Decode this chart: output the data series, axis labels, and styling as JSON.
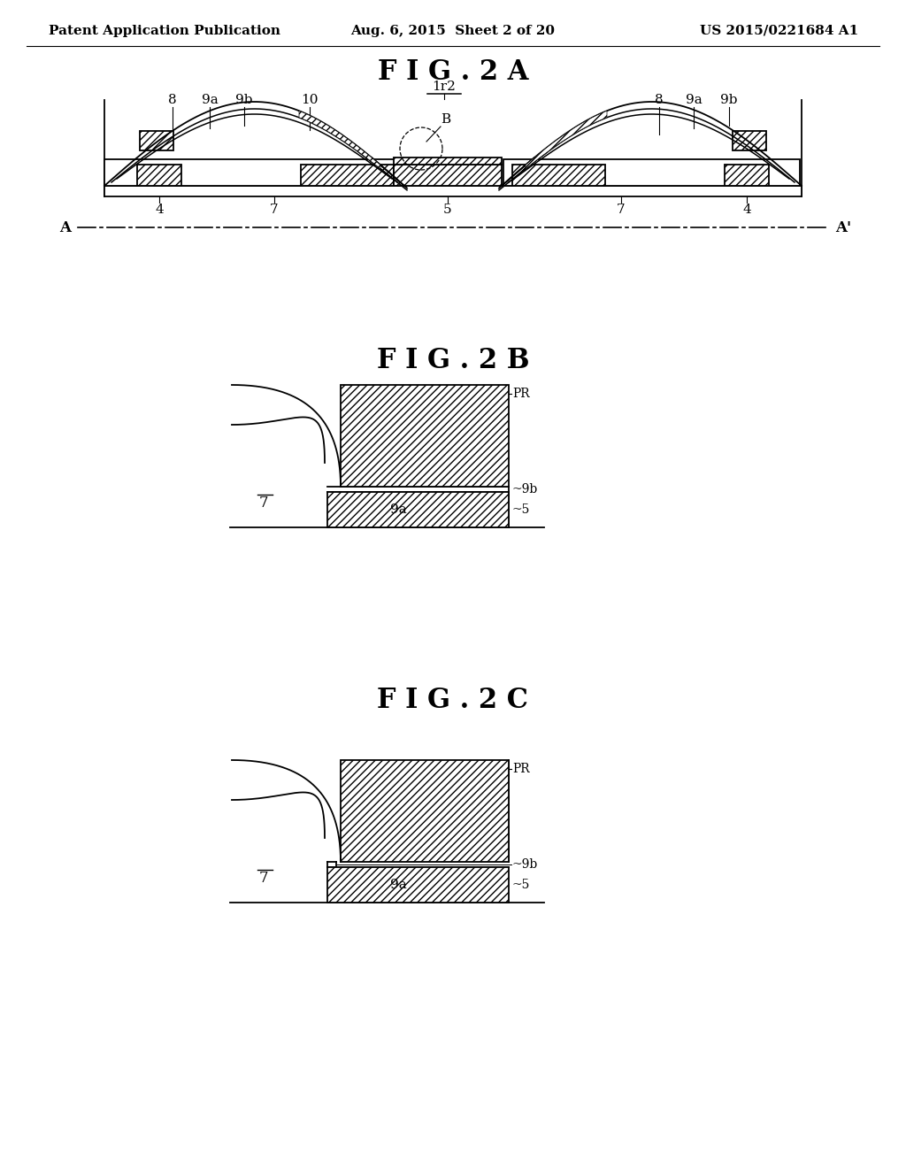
{
  "bg_color": "#ffffff",
  "header_left": "Patent Application Publication",
  "header_center": "Aug. 6, 2015  Sheet 2 of 20",
  "header_right": "US 2015/0221684 A1",
  "fig2a_title": "F I G . 2 A",
  "fig2b_title": "F I G . 2 B",
  "fig2c_title": "F I G . 2 C",
  "header_fontsize": 11,
  "title_fontsize": 22,
  "label_fontsize": 11
}
